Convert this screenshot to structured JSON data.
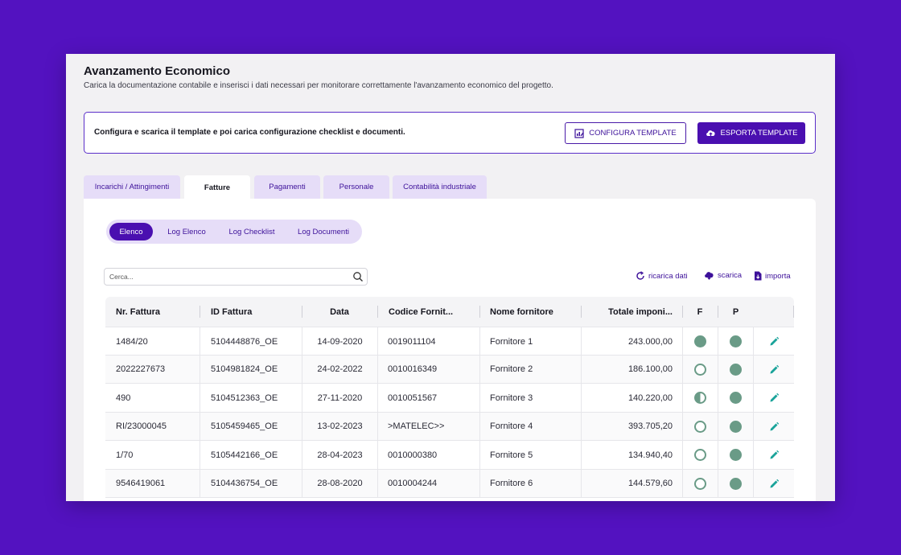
{
  "header": {
    "title": "Avanzamento Economico",
    "subtitle": "Carica la documentazione contabile e inserisci i dati necessari per monitorare correttamente l'avanzamento economico del progetto."
  },
  "banner": {
    "text": "Configura e scarica il template e poi carica configurazione checklist e documenti.",
    "configure_label": "CONFIGURA TEMPLATE",
    "export_label": "ESPORTA TEMPLATE"
  },
  "tabs": [
    {
      "label": "Incarichi / Attingimenti"
    },
    {
      "label": "Fatture"
    },
    {
      "label": "Pagamenti"
    },
    {
      "label": "Personale"
    },
    {
      "label": "Contabilità industriale"
    }
  ],
  "subtabs": [
    {
      "label": "Elenco"
    },
    {
      "label": "Log Elenco"
    },
    {
      "label": "Log Checklist"
    },
    {
      "label": "Log Documenti"
    }
  ],
  "search": {
    "placeholder": "Cerca..."
  },
  "actions": {
    "reload": "ricarica dati",
    "download": "scarica",
    "import": "importa"
  },
  "table": {
    "columns": [
      "Nr. Fattura",
      "ID Fattura",
      "Data",
      "Codice Fornit...",
      "Nome fornitore",
      "Totale imponi...",
      "F",
      "P"
    ],
    "rows": [
      {
        "nr": "1484/20",
        "id": "5104448876_OE",
        "data": "14-09-2020",
        "codice": "0019011104",
        "nome": "Fornitore 1",
        "totale": "243.000,00",
        "f": "full",
        "p": "full"
      },
      {
        "nr": "2022227673",
        "id": "5104981824_OE",
        "data": "24-02-2022",
        "codice": "0010016349",
        "nome": "Fornitore 2",
        "totale": "186.100,00",
        "f": "empty",
        "p": "full"
      },
      {
        "nr": "490",
        "id": "5104512363_OE",
        "data": "27-11-2020",
        "codice": "0010051567",
        "nome": "Fornitore 3",
        "totale": "140.220,00",
        "f": "half",
        "p": "full"
      },
      {
        "nr": "RI/23000045",
        "id": "5105459465_OE",
        "data": "13-02-2023",
        "codice": ">MATELEC>>",
        "nome": "Fornitore 4",
        "totale": "393.705,20",
        "f": "empty",
        "p": "full"
      },
      {
        "nr": "1/70",
        "id": "5105442166_OE",
        "data": "28-04-2023",
        "codice": "0010000380",
        "nome": "Fornitore 5",
        "totale": "134.940,40",
        "f": "empty",
        "p": "full"
      },
      {
        "nr": "9546419061",
        "id": "5104436754_OE",
        "data": "28-08-2020",
        "codice": "0010004244",
        "nome": "Fornitore 6",
        "totale": "144.579,60",
        "f": "empty",
        "p": "full"
      }
    ]
  },
  "colors": {
    "brand": "#4a0fb0",
    "background": "#5312c0",
    "status": "#6a9b87",
    "edit": "#1aa39a"
  },
  "icons": {
    "configure": "chart-edit-icon",
    "export": "cloud-upload-icon",
    "search": "search-icon",
    "reload": "refresh-icon",
    "download": "cloud-download-icon",
    "import": "file-import-icon",
    "edit": "pencil-icon"
  }
}
